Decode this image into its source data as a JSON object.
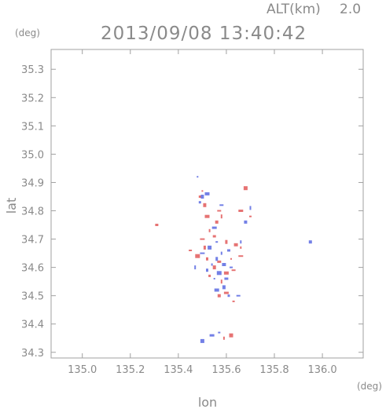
{
  "header": {
    "alt_label": "ALT(km)",
    "alt_value": "2.0",
    "timestamp": "2013/09/08 13:40:42"
  },
  "axes": {
    "x_label": "lon",
    "y_label": "lat",
    "x_unit": "(deg)",
    "y_unit": "(deg)",
    "x_ticks": [
      "135.0",
      "135.2",
      "135.4",
      "135.6",
      "135.8",
      "136.0"
    ],
    "y_ticks": [
      "35.3",
      "35.2",
      "35.1",
      "35.0",
      "34.9",
      "34.8",
      "34.7",
      "34.6",
      "34.5",
      "34.4",
      "34.3"
    ]
  },
  "chart_data": {
    "type": "scatter",
    "xlim": [
      134.87,
      136.17
    ],
    "ylim": [
      34.28,
      35.37
    ],
    "x_ticks": [
      135.0,
      135.2,
      135.4,
      135.6,
      135.8,
      136.0
    ],
    "y_ticks": [
      34.3,
      34.4,
      34.5,
      34.6,
      34.7,
      34.8,
      34.9,
      35.0,
      35.1,
      35.2,
      35.3
    ],
    "grid": false,
    "colors": {
      "positive": "#e05050",
      "negative": "#5060e0",
      "axis": "#a0a0a0",
      "text": "#8a8a8a"
    },
    "series": [
      {
        "color": "positive",
        "points": [
          [
            135.5,
            34.87
          ],
          [
            135.51,
            34.82
          ],
          [
            135.52,
            34.78
          ],
          [
            135.49,
            34.85
          ],
          [
            135.57,
            34.8
          ],
          [
            135.58,
            34.78
          ],
          [
            135.56,
            34.76
          ],
          [
            135.66,
            34.8
          ],
          [
            135.7,
            34.78
          ],
          [
            135.68,
            34.88
          ],
          [
            135.53,
            34.73
          ],
          [
            135.55,
            34.71
          ],
          [
            135.5,
            34.7
          ],
          [
            135.6,
            34.69
          ],
          [
            135.64,
            34.68
          ],
          [
            135.66,
            34.67
          ],
          [
            135.45,
            34.66
          ],
          [
            135.48,
            34.64
          ],
          [
            135.52,
            34.63
          ],
          [
            135.57,
            34.62
          ],
          [
            135.62,
            34.63
          ],
          [
            135.55,
            34.6
          ],
          [
            135.6,
            34.58
          ],
          [
            135.53,
            34.57
          ],
          [
            135.63,
            34.59
          ],
          [
            135.58,
            34.55
          ],
          [
            135.57,
            34.5
          ],
          [
            135.6,
            34.51
          ],
          [
            135.63,
            34.48
          ],
          [
            135.62,
            34.36
          ],
          [
            135.59,
            34.35
          ],
          [
            135.31,
            34.75
          ],
          [
            135.66,
            34.64
          ],
          [
            135.51,
            34.67
          ]
        ]
      },
      {
        "color": "negative",
        "points": [
          [
            135.48,
            34.92
          ],
          [
            135.5,
            34.85
          ],
          [
            135.52,
            34.86
          ],
          [
            135.49,
            34.83
          ],
          [
            135.58,
            34.82
          ],
          [
            135.7,
            34.81
          ],
          [
            135.68,
            34.76
          ],
          [
            135.55,
            34.74
          ],
          [
            135.56,
            34.69
          ],
          [
            135.53,
            34.67
          ],
          [
            135.58,
            34.65
          ],
          [
            135.61,
            34.66
          ],
          [
            135.5,
            34.65
          ],
          [
            135.56,
            34.63
          ],
          [
            135.59,
            34.61
          ],
          [
            135.54,
            34.61
          ],
          [
            135.62,
            34.6
          ],
          [
            135.57,
            34.58
          ],
          [
            135.52,
            34.59
          ],
          [
            135.6,
            34.56
          ],
          [
            135.55,
            34.56
          ],
          [
            135.59,
            34.53
          ],
          [
            135.56,
            34.52
          ],
          [
            135.61,
            34.5
          ],
          [
            135.65,
            34.5
          ],
          [
            135.47,
            34.6
          ],
          [
            135.95,
            34.69
          ],
          [
            135.54,
            34.36
          ],
          [
            135.57,
            34.37
          ],
          [
            135.5,
            34.34
          ],
          [
            135.66,
            34.69
          ]
        ]
      }
    ]
  }
}
